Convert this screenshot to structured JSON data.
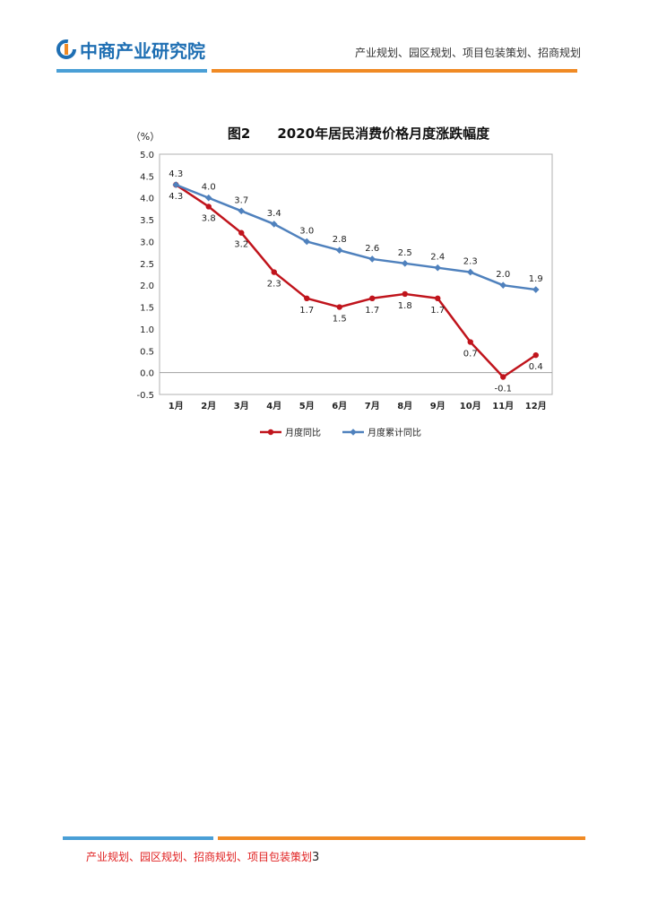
{
  "header": {
    "logo_text": "中商产业研究院",
    "tagline": "产业规划、园区规划、项目包装策划、招商规划"
  },
  "footer": {
    "tagline": "产业规划、园区规划、招商规划、项目包装策划",
    "page_number": "3"
  },
  "colors": {
    "brand_blue": "#1f6fb3",
    "line_blue": "#4a9fd6",
    "line_orange": "#f08a24",
    "series_yoy": "#c0141c",
    "series_cumulative": "#4f81bd"
  },
  "chart_data": {
    "type": "line",
    "title": "图2　　2020年居民消费价格月度涨跌幅度",
    "ylabel": "（%）",
    "xlabel": "",
    "categories": [
      "1月",
      "2月",
      "3月",
      "4月",
      "5月",
      "6月",
      "7月",
      "8月",
      "9月",
      "10月",
      "11月",
      "12月"
    ],
    "ylim": [
      -0.5,
      5.0
    ],
    "yticks": [
      "5.0",
      "4.5",
      "4.0",
      "3.5",
      "3.0",
      "2.5",
      "2.0",
      "1.5",
      "1.0",
      "0.5",
      "0.0",
      "-0.5"
    ],
    "grid": false,
    "legend_position": "bottom",
    "series": [
      {
        "name": "月度同比",
        "color": "#c0141c",
        "values": [
          4.3,
          3.8,
          3.2,
          2.3,
          1.7,
          1.5,
          1.7,
          1.8,
          1.7,
          0.7,
          -0.1,
          0.4
        ],
        "labels": [
          "4.3",
          "3.8",
          "3.2",
          "2.3",
          "1.7",
          "1.5",
          "1.7",
          "1.8",
          "1.7",
          "0.7",
          "-0.1",
          "0.4"
        ]
      },
      {
        "name": "月度累计同比",
        "color": "#4f81bd",
        "values": [
          4.3,
          4.0,
          3.7,
          3.4,
          3.0,
          2.8,
          2.6,
          2.5,
          2.4,
          2.3,
          2.0,
          1.9
        ],
        "labels": [
          "4.3",
          "4.0",
          "3.7",
          "3.4",
          "3.0",
          "2.8",
          "2.6",
          "2.5",
          "2.4",
          "2.3",
          "2.0",
          "1.9"
        ]
      }
    ]
  }
}
